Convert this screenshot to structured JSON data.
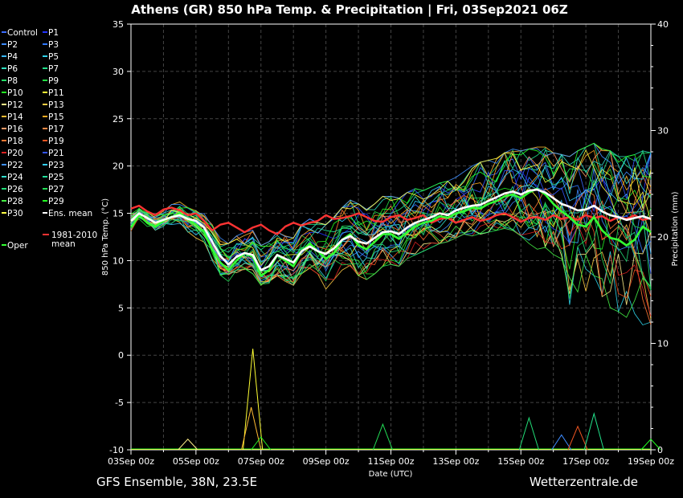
{
  "header": {
    "title": "Athens  (GR)  850 hPa Temp. & Precipitation | Fri, 03Sep2021 06Z"
  },
  "footer": {
    "model": "GFS Ensemble, 38N, 23.5E",
    "source": "Wetterzentrale.de"
  },
  "chart_data": {
    "type": "line",
    "title": "Athens  (GR)  850 hPa Temp. & Precipitation | Fri, 03Sep2021 06Z",
    "xlabel": "Date (UTC)",
    "ylabel": "850 hPa Temp. (°C)",
    "y2label": "Precipitation (mm)",
    "ylim": [
      -10,
      35
    ],
    "y2lim": [
      0,
      40
    ],
    "yticks": [
      35,
      30,
      25,
      20,
      15,
      10,
      5,
      0,
      -5,
      -10
    ],
    "y2ticks": [
      40,
      30,
      20,
      10,
      0
    ],
    "xlim": [
      "2021-09-03 00:00",
      "2021-09-19 00:00"
    ],
    "xtick_labels": [
      "03Sep 00z",
      "05Sep 00z",
      "07Sep 00z",
      "09Sep 00z",
      "11Sep 00z",
      "13Sep 00z",
      "15Sep 00z",
      "17Sep 00z",
      "19Sep 00z"
    ],
    "grid": true,
    "legend_position": "left",
    "legend": [
      {
        "name": "Control",
        "color": "#3b6cff"
      },
      {
        "name": "P1",
        "color": "#2233ff"
      },
      {
        "name": "P2",
        "color": "#3d8bff"
      },
      {
        "name": "P3",
        "color": "#2f78ff"
      },
      {
        "name": "P4",
        "color": "#38b8ff"
      },
      {
        "name": "P5",
        "color": "#2ed1e8"
      },
      {
        "name": "P6",
        "color": "#2ee0c0"
      },
      {
        "name": "P7",
        "color": "#22e08a"
      },
      {
        "name": "P8",
        "color": "#22dd66"
      },
      {
        "name": "P9",
        "color": "#22dd44"
      },
      {
        "name": "P10",
        "color": "#22ee22"
      },
      {
        "name": "P11",
        "color": "#ffff33"
      },
      {
        "name": "P12",
        "color": "#ffee88"
      },
      {
        "name": "P13",
        "color": "#ffcc44"
      },
      {
        "name": "P14",
        "color": "#ffbb33"
      },
      {
        "name": "P15",
        "color": "#ffaa22"
      },
      {
        "name": "P16",
        "color": "#ff9966"
      },
      {
        "name": "P17",
        "color": "#ff8844"
      },
      {
        "name": "P18",
        "color": "#ff7733"
      },
      {
        "name": "P19",
        "color": "#ee5522"
      },
      {
        "name": "P20",
        "color": "#dd2222"
      },
      {
        "name": "P21",
        "color": "#3355ff"
      },
      {
        "name": "P22",
        "color": "#3f8fff"
      },
      {
        "name": "P23",
        "color": "#33ccff"
      },
      {
        "name": "P24",
        "color": "#33ddcc"
      },
      {
        "name": "P25",
        "color": "#22dd99"
      },
      {
        "name": "P26",
        "color": "#22dd77"
      },
      {
        "name": "P27",
        "color": "#22dd55"
      },
      {
        "name": "P28",
        "color": "#44ee44"
      },
      {
        "name": "P29",
        "color": "#22ff22"
      },
      {
        "name": "P30",
        "color": "#ffff44"
      },
      {
        "name": "Ens. mean",
        "color": "#ffffff"
      },
      {
        "name": "Oper",
        "color": "#33ff33"
      },
      {
        "name": "1981-2010 mean",
        "color": "#ff3333"
      }
    ],
    "x_days": [
      0,
      0.25,
      0.5,
      0.75,
      1,
      1.25,
      1.5,
      1.75,
      2,
      2.25,
      2.5,
      2.75,
      3,
      3.25,
      3.5,
      3.75,
      4,
      4.25,
      4.5,
      4.75,
      5,
      5.25,
      5.5,
      5.75,
      6,
      6.25,
      6.5,
      6.75,
      7,
      7.25,
      7.5,
      7.75,
      8,
      8.25,
      8.5,
      8.75,
      9,
      9.25,
      9.5,
      9.75,
      10,
      10.25,
      10.5,
      10.75,
      11,
      11.25,
      11.5,
      11.75,
      12,
      12.25,
      12.5,
      12.75,
      13,
      13.25,
      13.5,
      13.75,
      14,
      14.25,
      14.5,
      14.75,
      15,
      15.25,
      15.5,
      15.75,
      16
    ],
    "ens_mean": [
      14.2,
      15.0,
      14.5,
      14.0,
      14.3,
      14.6,
      14.8,
      14.4,
      14.2,
      13.5,
      12.0,
      10.5,
      9.6,
      10.4,
      10.8,
      10.6,
      9.0,
      9.4,
      10.6,
      10.2,
      9.8,
      11.0,
      11.5,
      11.0,
      10.7,
      11.3,
      12.2,
      12.6,
      12.0,
      11.8,
      12.4,
      13.0,
      13.1,
      12.8,
      13.5,
      14.0,
      14.3,
      14.6,
      15.0,
      14.8,
      15.3,
      15.6,
      15.8,
      15.9,
      16.3,
      16.7,
      17.1,
      17.3,
      17.0,
      17.4,
      17.5,
      17.2,
      16.6,
      16.0,
      15.7,
      15.3,
      15.4,
      15.8,
      15.2,
      14.8,
      14.6,
      14.3,
      14.5,
      14.7,
      14.4
    ],
    "oper": [
      13.5,
      14.8,
      14.0,
      13.6,
      14.2,
      14.6,
      15.0,
      14.4,
      13.8,
      13.0,
      11.2,
      9.8,
      9.0,
      10.0,
      10.8,
      10.4,
      8.4,
      9.0,
      10.6,
      10.0,
      9.4,
      11.0,
      11.8,
      11.0,
      10.2,
      10.8,
      12.2,
      12.8,
      11.6,
      11.2,
      12.0,
      12.8,
      12.8,
      12.3,
      13.0,
      13.6,
      14.0,
      14.2,
      14.7,
      14.5,
      15.0,
      15.2,
      15.6,
      15.5,
      16.0,
      16.3,
      16.8,
      17.0,
      16.6,
      17.2,
      17.6,
      17.0,
      16.0,
      15.2,
      14.6,
      13.8,
      13.6,
      14.6,
      13.2,
      12.4,
      12.2,
      11.6,
      12.2,
      13.6,
      13.0
    ],
    "climatology_mean": [
      15.5,
      15.8,
      15.2,
      14.8,
      15.4,
      15.6,
      15.3,
      14.8,
      15.0,
      14.2,
      13.2,
      13.8,
      14.0,
      13.5,
      13.0,
      13.5,
      13.8,
      13.2,
      12.8,
      13.6,
      14.0,
      13.7,
      14.0,
      14.2,
      14.8,
      14.4,
      14.5,
      14.7,
      15.0,
      14.6,
      14.2,
      14.1,
      14.6,
      14.8,
      14.3,
      14.5,
      14.8,
      14.0,
      14.4,
      14.5,
      14.0,
      14.3,
      14.6,
      14.2,
      14.4,
      14.8,
      15.0,
      14.6,
      14.1,
      14.5,
      14.6,
      14.3,
      14.8,
      14.4,
      14.6,
      14.3,
      14.8,
      14.5,
      14.7,
      14.2,
      14.6,
      14.4,
      14.8,
      14.3,
      14.5
    ],
    "temp_spread": {
      "upper": [
        15.8,
        16.0,
        15.5,
        15.2,
        15.6,
        16.0,
        16.2,
        15.6,
        15.4,
        15.0,
        13.8,
        12.4,
        11.8,
        12.6,
        13.0,
        13.2,
        11.6,
        12.0,
        13.0,
        12.6,
        12.4,
        13.8,
        14.4,
        14.0,
        13.8,
        14.6,
        15.6,
        16.4,
        16.0,
        15.4,
        16.0,
        16.8,
        16.8,
        16.6,
        17.2,
        17.6,
        17.4,
        17.8,
        18.2,
        18.4,
        18.8,
        19.4,
        20.0,
        20.4,
        20.6,
        20.8,
        21.4,
        21.8,
        21.6,
        21.8,
        22.0,
        22.0,
        21.4,
        21.2,
        21.0,
        21.6,
        22.0,
        22.4,
        21.8,
        21.6,
        21.0,
        21.0,
        21.2,
        21.6,
        21.4
      ],
      "lower": [
        12.0,
        13.6,
        13.2,
        12.8,
        13.2,
        13.4,
        13.6,
        13.0,
        12.4,
        11.6,
        10.0,
        8.2,
        7.8,
        8.6,
        9.0,
        8.6,
        7.4,
        7.6,
        8.4,
        7.8,
        7.4,
        8.6,
        9.2,
        8.6,
        7.0,
        8.0,
        9.0,
        9.4,
        8.4,
        8.0,
        8.6,
        9.4,
        9.6,
        9.4,
        10.2,
        10.6,
        11.0,
        11.4,
        11.8,
        12.0,
        12.4,
        12.8,
        12.6,
        12.8,
        13.0,
        13.2,
        13.4,
        13.2,
        12.6,
        11.8,
        11.2,
        11.4,
        9.8,
        7.0,
        5.0,
        4.2,
        6.0,
        8.4,
        6.2,
        5.0,
        4.6,
        4.0,
        4.4,
        3.2,
        2.2
      ]
    },
    "precip_events_mm": [
      {
        "x": 3.75,
        "max": 9.5,
        "member": "P11"
      },
      {
        "x": 3.7,
        "max": 4.0,
        "member": "P14"
      },
      {
        "x": 1.75,
        "max": 1.0,
        "member": "P12"
      },
      {
        "x": 4.0,
        "max": 1.2,
        "member": "P10"
      },
      {
        "x": 7.75,
        "max": 2.4,
        "member": "P27"
      },
      {
        "x": 12.25,
        "max": 3.0,
        "member": "P26"
      },
      {
        "x": 13.25,
        "max": 1.4,
        "member": "P2"
      },
      {
        "x": 13.75,
        "max": 2.2,
        "member": "P19"
      },
      {
        "x": 14.25,
        "max": 3.4,
        "member": "P7"
      },
      {
        "x": 16.0,
        "max": 1.0,
        "member": "P29"
      }
    ]
  }
}
